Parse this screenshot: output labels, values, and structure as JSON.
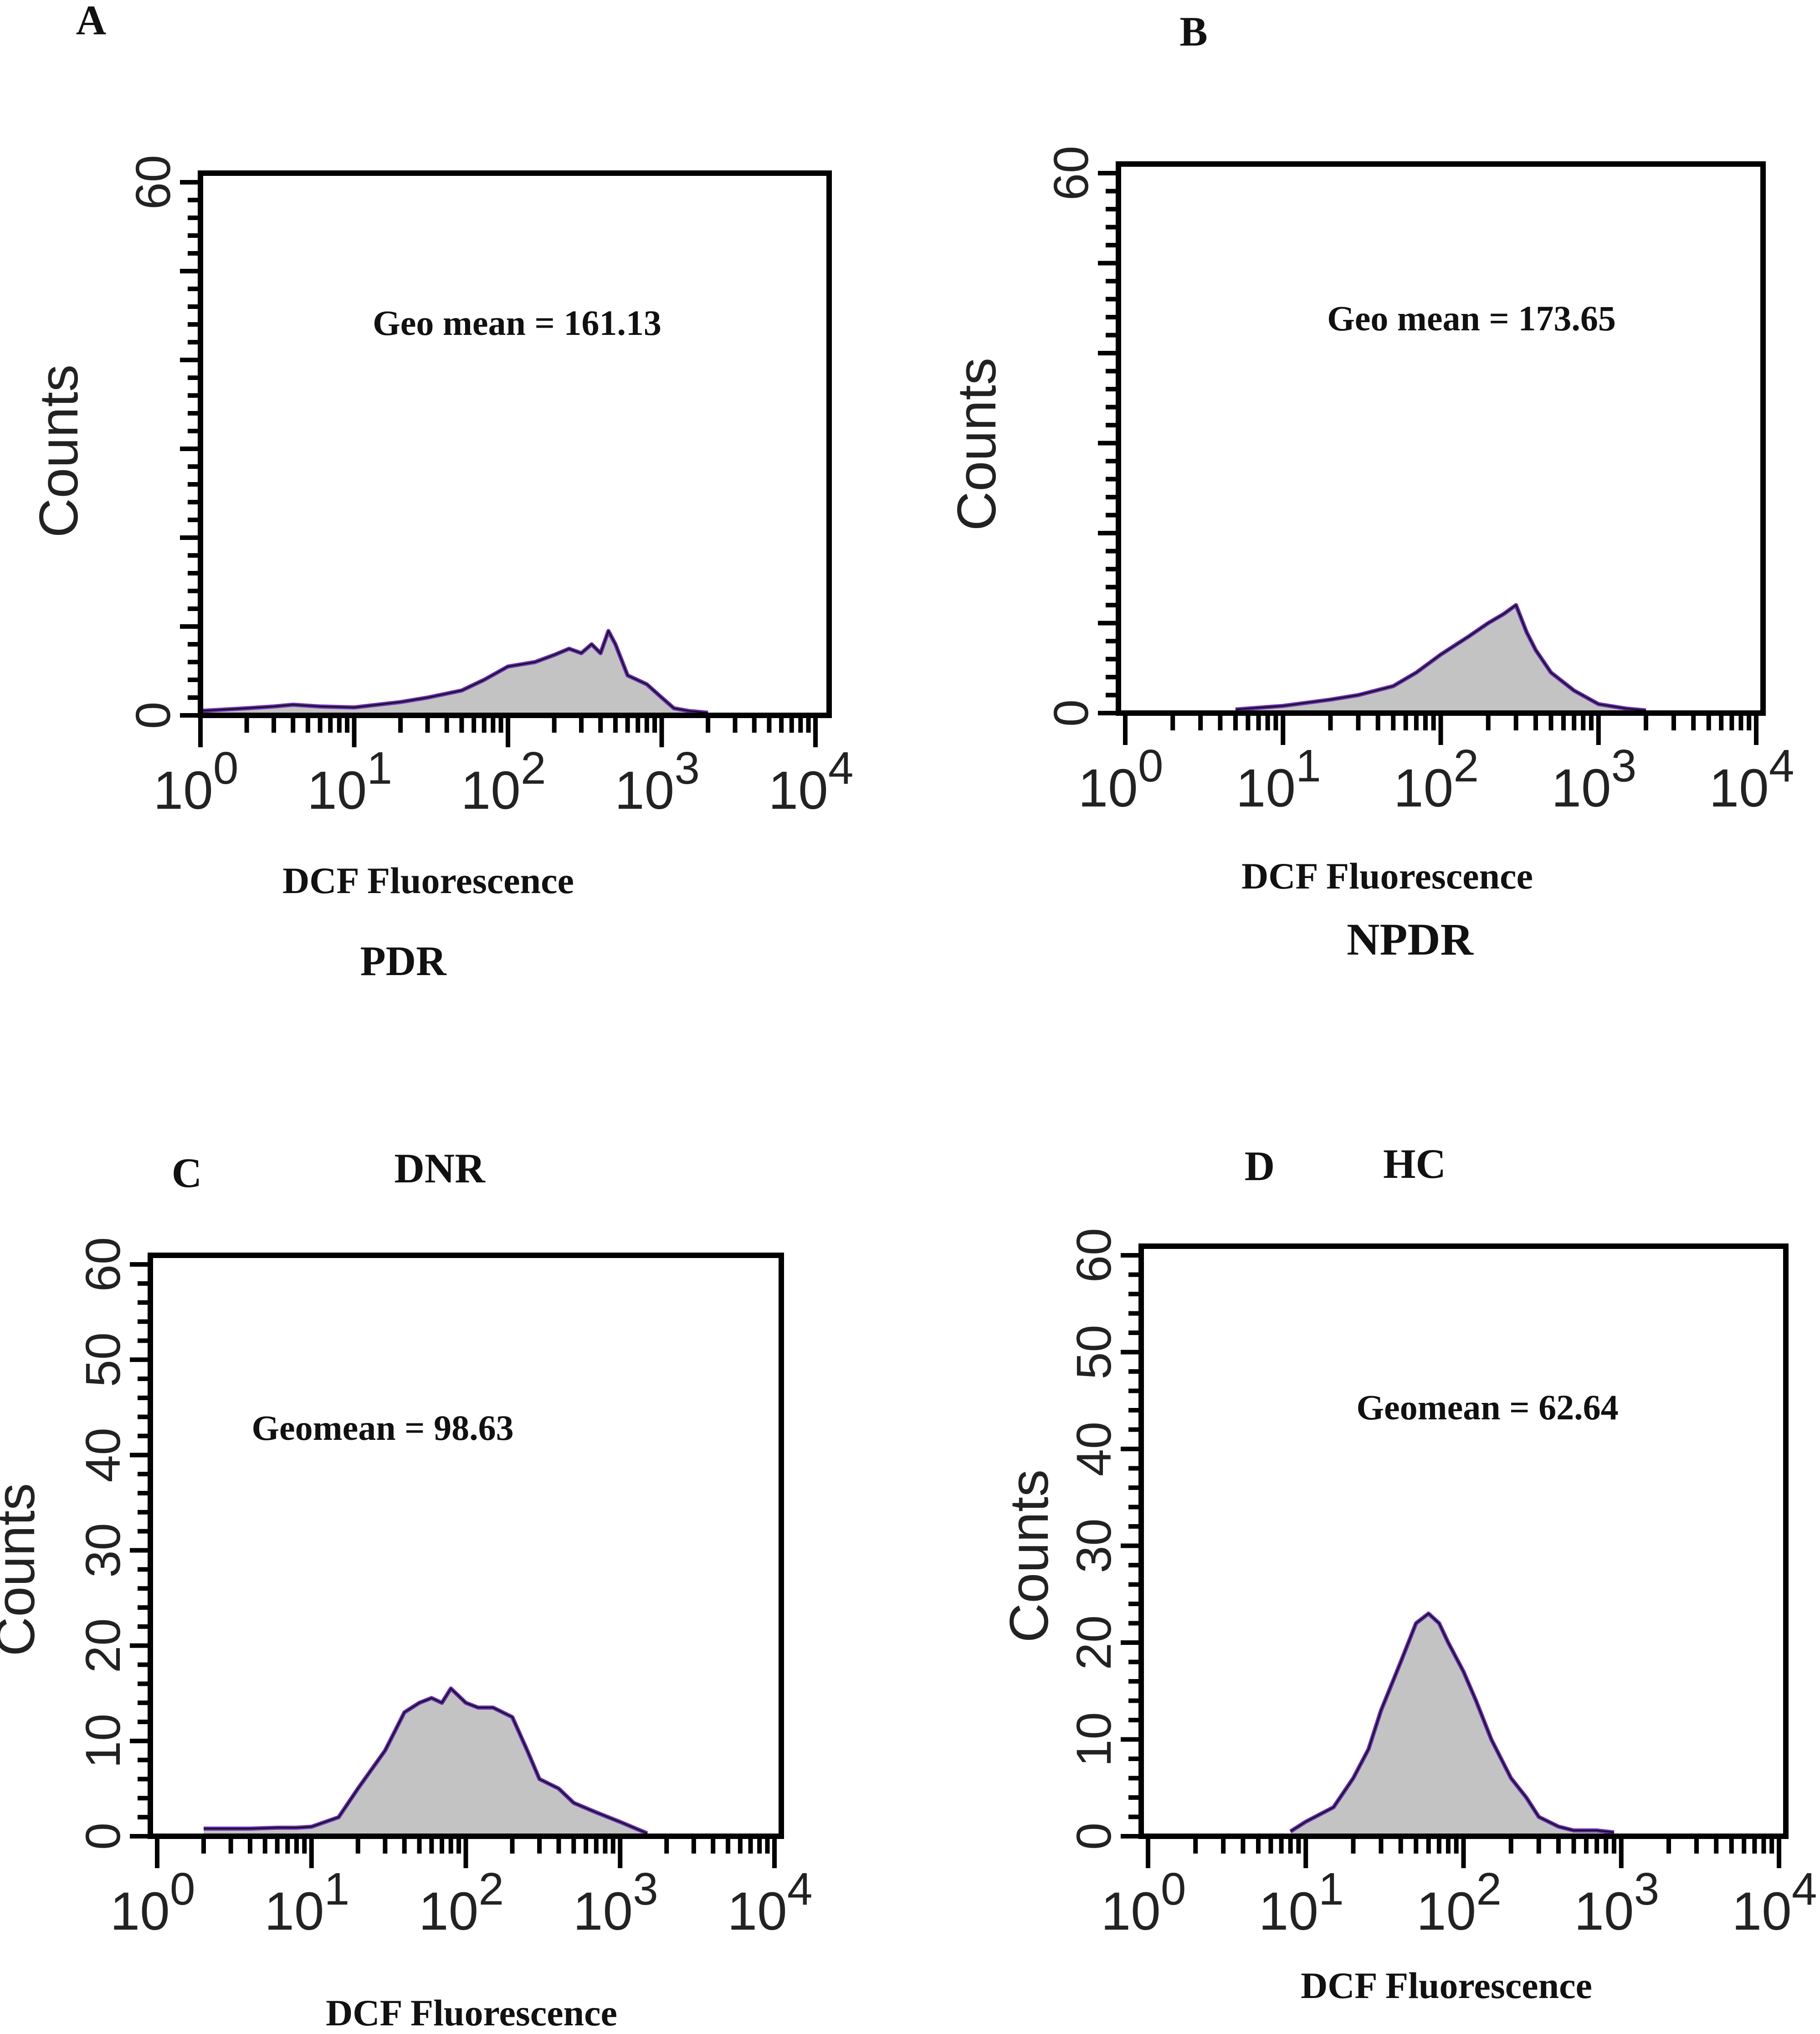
{
  "chart_data": [
    {
      "type": "area",
      "panel_letter": "A",
      "group_label": "PDR",
      "annotation": "Geo mean = 161.13",
      "xlabel": "DCF Fluorescence",
      "ylabel": "Counts",
      "x_scale": "log",
      "xlim": [
        1,
        10000
      ],
      "ylim": [
        0,
        60
      ],
      "x_tick_labels": [
        {
          "base": "10",
          "exp": "0"
        },
        {
          "base": "10",
          "exp": "1"
        },
        {
          "base": "10",
          "exp": "2"
        },
        {
          "base": "10",
          "exp": "3"
        },
        {
          "base": "10",
          "exp": "4"
        }
      ],
      "y_tick_labels": [
        "0",
        "60"
      ],
      "x": [
        1,
        2,
        3,
        4,
        6,
        10,
        20,
        30,
        50,
        70,
        100,
        150,
        200,
        250,
        300,
        350,
        400,
        450,
        500,
        600,
        800,
        1000,
        1200,
        1500,
        2000
      ],
      "values": [
        0.5,
        0.8,
        1.0,
        1.2,
        1.0,
        0.9,
        1.5,
        2.0,
        2.8,
        4.0,
        5.5,
        6.0,
        6.8,
        7.5,
        7.0,
        8.0,
        7.0,
        9.5,
        8.0,
        4.5,
        3.5,
        2.0,
        0.8,
        0.5,
        0.3
      ],
      "fill_color": "#c3c3c3",
      "outline_color": "#6a2fb8"
    },
    {
      "type": "area",
      "panel_letter": "B",
      "group_label": "NPDR",
      "annotation": "Geo mean = 173.65",
      "xlabel": "DCF Fluorescence",
      "ylabel": "Counts",
      "x_scale": "log",
      "xlim": [
        1,
        10000
      ],
      "ylim": [
        0,
        60
      ],
      "x_tick_labels": [
        {
          "base": "10",
          "exp": "0"
        },
        {
          "base": "10",
          "exp": "1"
        },
        {
          "base": "10",
          "exp": "2"
        },
        {
          "base": "10",
          "exp": "3"
        },
        {
          "base": "10",
          "exp": "4"
        }
      ],
      "y_tick_labels": [
        "0",
        "60"
      ],
      "x": [
        5,
        10,
        20,
        30,
        50,
        70,
        100,
        150,
        200,
        250,
        300,
        350,
        400,
        500,
        700,
        1000,
        1500,
        2000
      ],
      "values": [
        0.4,
        0.8,
        1.5,
        2.0,
        3.0,
        4.5,
        6.5,
        8.5,
        10.0,
        11.0,
        12.0,
        9.0,
        7.0,
        4.5,
        2.5,
        1.0,
        0.5,
        0.3
      ],
      "fill_color": "#c3c3c3",
      "outline_color": "#6a2fb8"
    },
    {
      "type": "area",
      "panel_letter": "C",
      "group_label": "DNR",
      "annotation": "Geomean = 98.63",
      "xlabel": "DCF Fluorescence",
      "ylabel": "Counts",
      "x_scale": "log",
      "xlim": [
        1,
        10000
      ],
      "ylim": [
        0,
        60
      ],
      "x_tick_labels": [
        {
          "base": "10",
          "exp": "0"
        },
        {
          "base": "10",
          "exp": "1"
        },
        {
          "base": "10",
          "exp": "2"
        },
        {
          "base": "10",
          "exp": "3"
        },
        {
          "base": "10",
          "exp": "4"
        }
      ],
      "y_tick_labels": [
        "0",
        "10",
        "20",
        "30",
        "40",
        "50",
        "60"
      ],
      "x": [
        2,
        4,
        6,
        8,
        10,
        15,
        20,
        30,
        40,
        50,
        60,
        70,
        80,
        100,
        120,
        150,
        200,
        250,
        300,
        400,
        500,
        700,
        1000,
        1500
      ],
      "values": [
        0.8,
        0.8,
        0.9,
        0.9,
        1.0,
        2.0,
        5.0,
        9.0,
        13.0,
        14.0,
        14.5,
        14.0,
        15.5,
        14.0,
        13.5,
        13.5,
        12.5,
        9.0,
        6.0,
        5.0,
        3.5,
        2.5,
        1.5,
        0.3
      ],
      "fill_color": "#c3c3c3",
      "outline_color": "#6a2fb8"
    },
    {
      "type": "area",
      "panel_letter": "D",
      "group_label": "HC",
      "annotation": "Geomean = 62.64",
      "xlabel": "DCF Fluorescence",
      "ylabel": "Counts",
      "x_scale": "log",
      "xlim": [
        1,
        10000
      ],
      "ylim": [
        0,
        60
      ],
      "x_tick_labels": [
        {
          "base": "10",
          "exp": "0"
        },
        {
          "base": "10",
          "exp": "1"
        },
        {
          "base": "10",
          "exp": "2"
        },
        {
          "base": "10",
          "exp": "3"
        },
        {
          "base": "10",
          "exp": "4"
        }
      ],
      "y_tick_labels": [
        "0",
        "10",
        "20",
        "30",
        "40",
        "50",
        "60"
      ],
      "x": [
        8,
        10,
        15,
        20,
        25,
        30,
        40,
        50,
        60,
        70,
        80,
        100,
        120,
        150,
        200,
        250,
        300,
        400,
        500,
        700,
        900
      ],
      "values": [
        0.5,
        1.5,
        3.0,
        6.0,
        9.0,
        13.0,
        18.0,
        22.0,
        23.0,
        22.0,
        20.0,
        17.0,
        14.0,
        10.0,
        6.0,
        4.0,
        2.0,
        1.0,
        0.6,
        0.6,
        0.4
      ],
      "fill_color": "#c3c3c3",
      "outline_color": "#6a2fb8"
    }
  ]
}
